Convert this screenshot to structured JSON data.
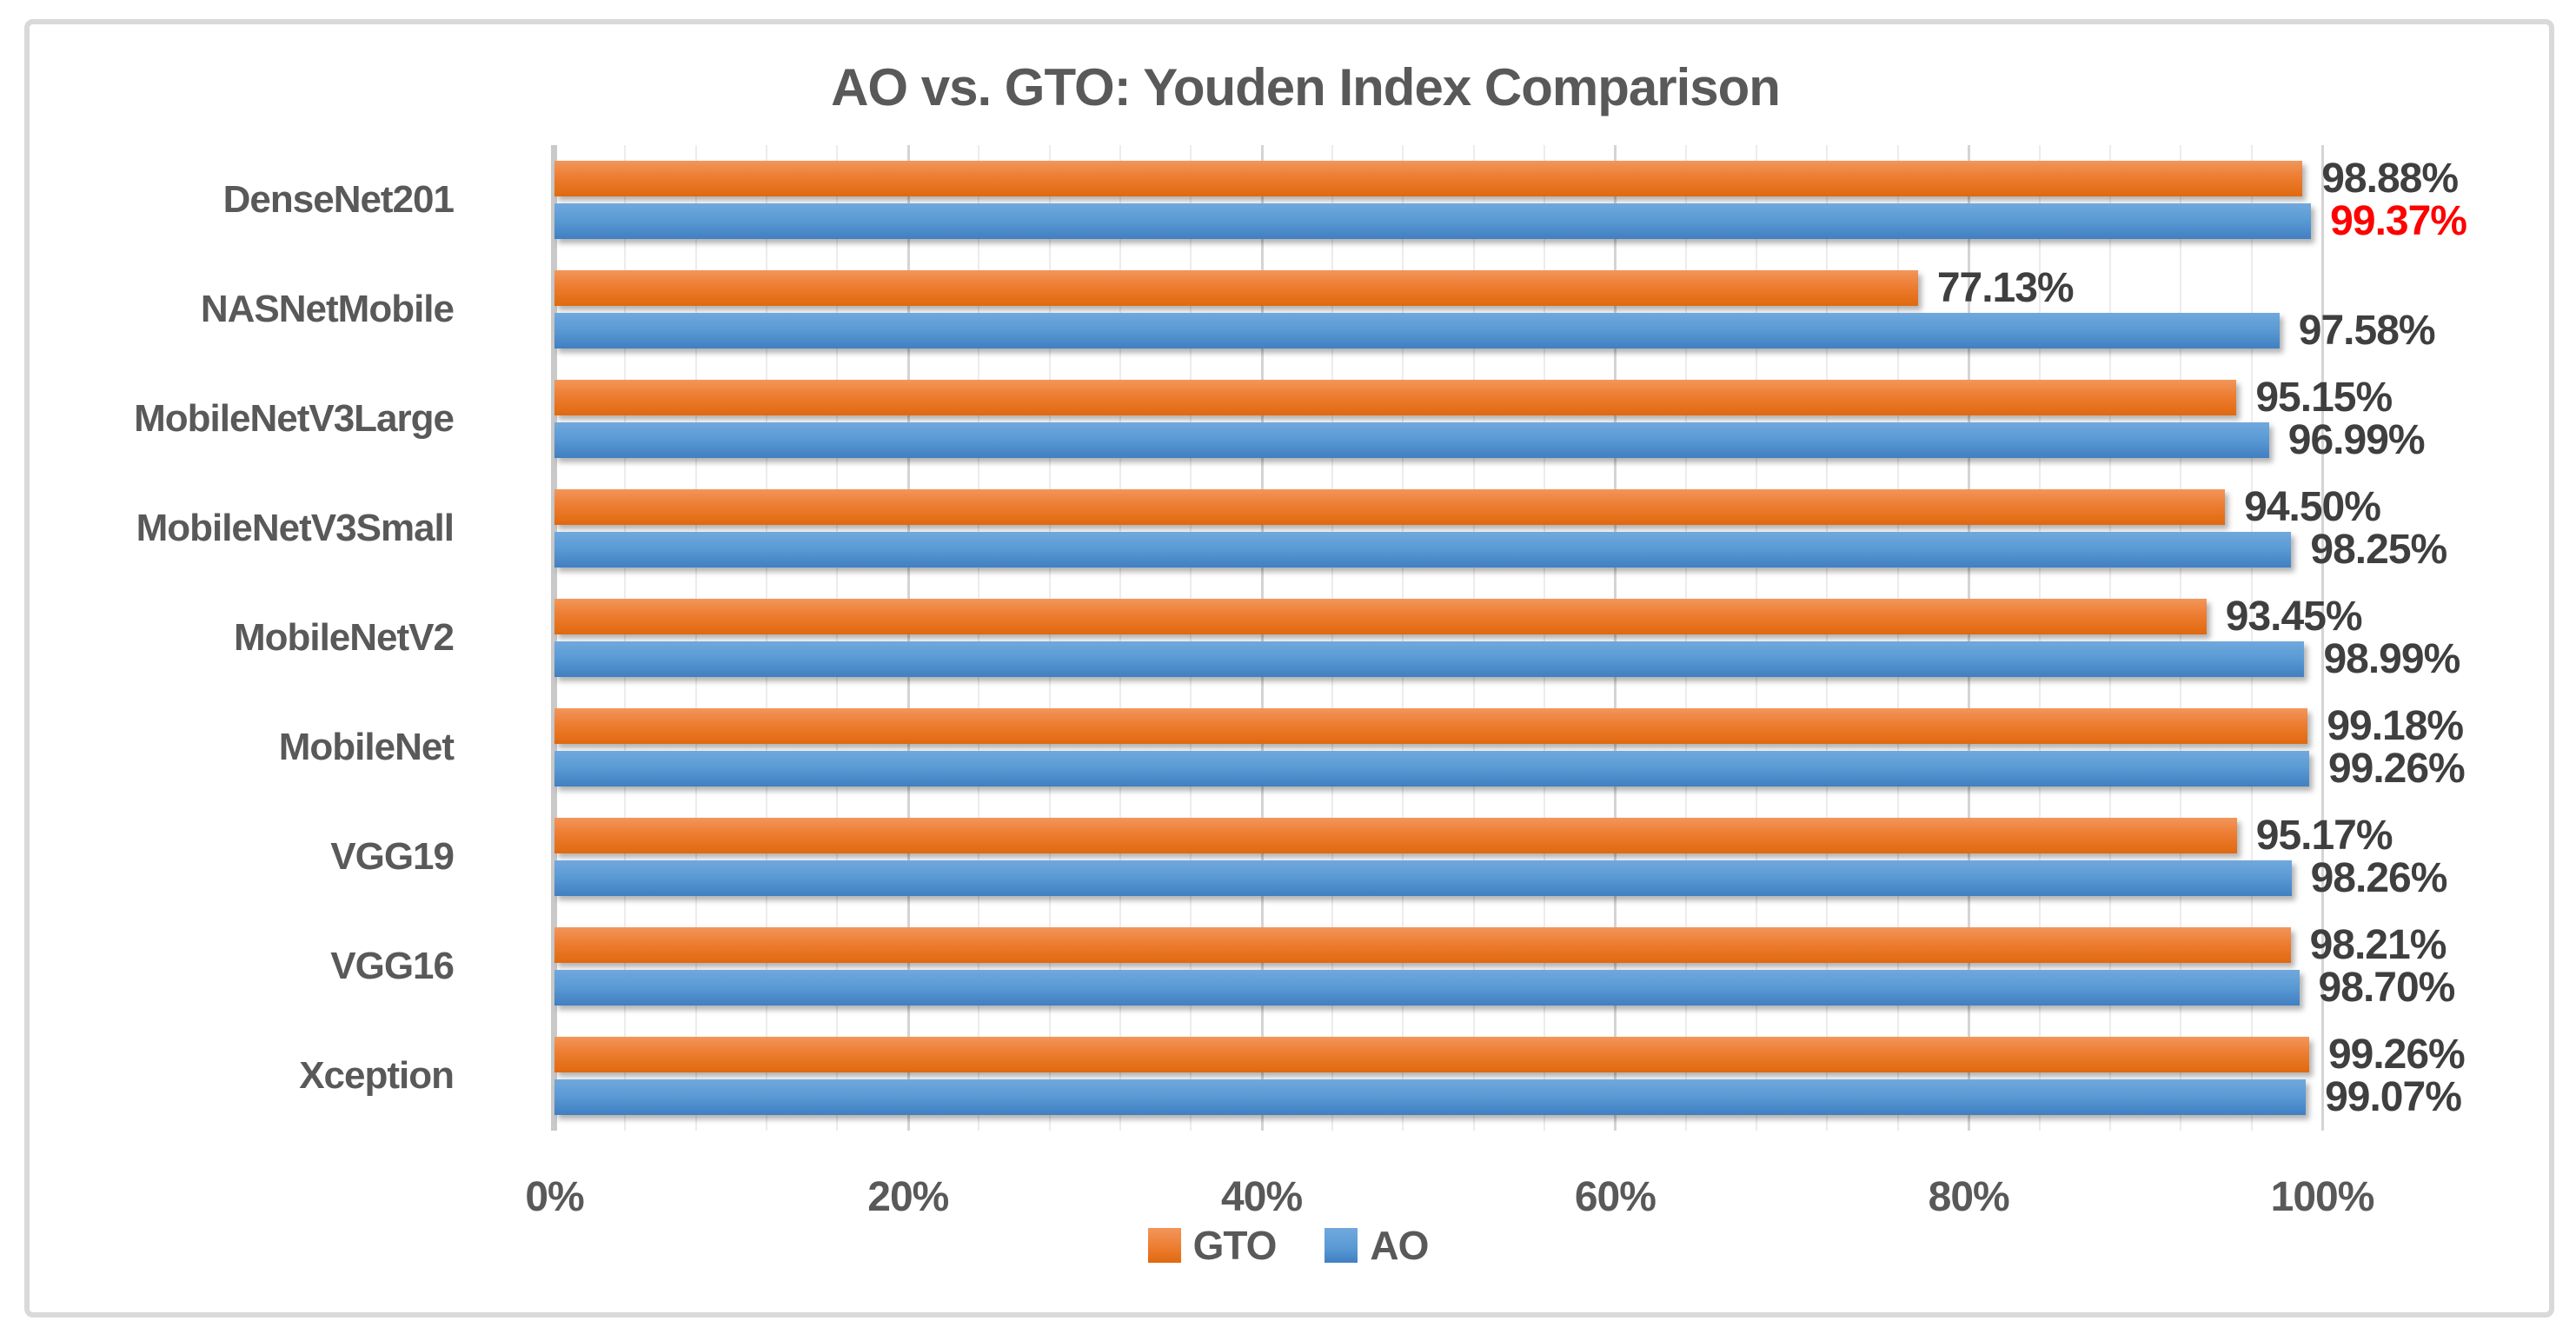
{
  "chart_data": {
    "type": "bar",
    "orientation": "horizontal",
    "title": "AO vs. GTO: Youden Index Comparison",
    "categories": [
      "DenseNet201",
      "NASNetMobile",
      "MobileNetV3Large",
      "MobileNetV3Small",
      "MobileNetV2",
      "MobileNet",
      "VGG19",
      "VGG16",
      "Xception"
    ],
    "series": [
      {
        "name": "GTO",
        "color": "#ED7D31",
        "values": [
          98.88,
          77.13,
          95.15,
          94.5,
          93.45,
          99.18,
          95.17,
          98.21,
          99.26
        ],
        "labels": [
          "98.88%",
          "77.13%",
          "95.15%",
          "94.50%",
          "93.45%",
          "99.18%",
          "95.17%",
          "98.21%",
          "99.26%"
        ]
      },
      {
        "name": "AO",
        "color": "#5B9BD5",
        "values": [
          99.37,
          97.58,
          96.99,
          98.25,
          98.99,
          99.26,
          98.26,
          98.7,
          99.07
        ],
        "labels": [
          "99.37%",
          "97.58%",
          "96.99%",
          "98.25%",
          "98.99%",
          "99.26%",
          "98.26%",
          "98.70%",
          "99.07%"
        ]
      }
    ],
    "xlim": [
      0,
      100
    ],
    "x_ticks": [
      {
        "pct": 0,
        "label": "0%"
      },
      {
        "pct": 20,
        "label": "20%"
      },
      {
        "pct": 40,
        "label": "40%"
      },
      {
        "pct": 60,
        "label": "60%"
      },
      {
        "pct": 80,
        "label": "80%"
      },
      {
        "pct": 100,
        "label": "100%"
      }
    ],
    "minor_gridline_unit_pct": 4,
    "major_gridline_unit_pct": 20,
    "grid": "on",
    "legend_position": "bottom-center",
    "data_label_color": "#3F3F3F",
    "highlight": {
      "series_index": 1,
      "category_index": 0,
      "color": "#FF0000"
    },
    "colors": {
      "gto_bar": "#ED7D31",
      "ao_bar": "#5B9BD5",
      "title_text": "#595959",
      "axis_text": "#595959",
      "figure_border": "#D9D9D9",
      "gridline_minor": "#ECECEC",
      "gridline_major": "#D4D4D4",
      "highlight_label": "#FF0000"
    }
  }
}
